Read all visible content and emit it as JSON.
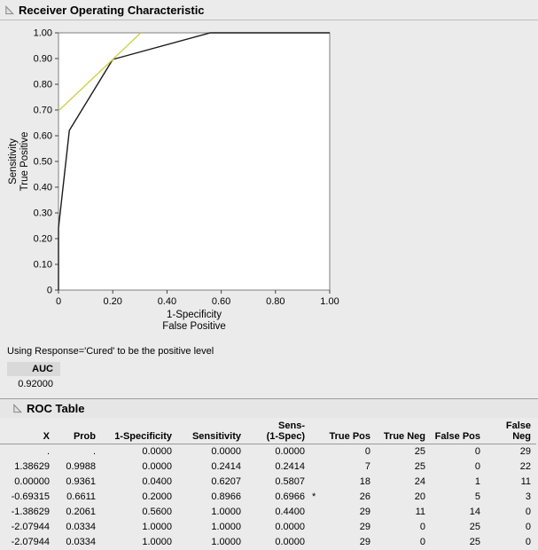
{
  "header": {
    "title": "Receiver Operating Characteristic"
  },
  "note": "Using Response='Cured' to be the positive level",
  "auc": {
    "label": "AUC",
    "value": "0.92000"
  },
  "roc_table_section": {
    "title": "ROC Table"
  },
  "colors": {
    "window_bg": "#ebebeb",
    "plot_bg": "#ffffff",
    "plot_border": "#7f7f7f",
    "curve": "#1a1a1a",
    "reference_line": "#cfd14c",
    "auc_header_bg": "#d9d9d9"
  },
  "chart_data": {
    "type": "line",
    "title": "Receiver Operating Characteristic",
    "xlabel": [
      "1-Specificity",
      "False Positive"
    ],
    "ylabel": [
      "Sensitivity",
      "True Positive"
    ],
    "xlim": [
      0,
      1
    ],
    "ylim": [
      0,
      1
    ],
    "grid": false,
    "x_ticks": [
      0,
      0.2,
      0.4,
      0.6,
      0.8,
      1.0
    ],
    "x_tick_labels": [
      "0",
      "0.20",
      "0.40",
      "0.60",
      "0.80",
      "1.00"
    ],
    "y_ticks": [
      0,
      0.1,
      0.2,
      0.3,
      0.4,
      0.5,
      0.6,
      0.7,
      0.8,
      0.9,
      1.0
    ],
    "y_tick_labels": [
      "0",
      "0.10",
      "0.20",
      "0.30",
      "0.40",
      "0.50",
      "0.60",
      "0.70",
      "0.80",
      "0.90",
      "1.00"
    ],
    "series": [
      {
        "name": "roc-curve",
        "color": "#1a1a1a",
        "points": [
          [
            0,
            0
          ],
          [
            0,
            0.2414
          ],
          [
            0.04,
            0.6207
          ],
          [
            0.2,
            0.8966
          ],
          [
            0.56,
            1.0
          ],
          [
            1.0,
            1.0
          ]
        ]
      },
      {
        "name": "optimal-threshold-reference-line",
        "color": "#cfd14c",
        "points": [
          [
            0,
            0.6966
          ],
          [
            0.3034,
            1.0
          ]
        ]
      }
    ]
  },
  "roc_table": {
    "columns": [
      "X",
      "Prob",
      "1-Specificity",
      "Sensitivity",
      "Sens-\n(1-Spec)",
      "",
      "True Pos",
      "True Neg",
      "False Pos",
      "False Neg"
    ],
    "rows": [
      [
        ".",
        ".",
        "0.0000",
        "0.0000",
        "0.0000",
        "",
        "0",
        "25",
        "0",
        "29"
      ],
      [
        "1.38629",
        "0.9988",
        "0.0000",
        "0.2414",
        "0.2414",
        "",
        "7",
        "25",
        "0",
        "22"
      ],
      [
        "0.00000",
        "0.9361",
        "0.0400",
        "0.6207",
        "0.5807",
        "",
        "18",
        "24",
        "1",
        "11"
      ],
      [
        "-0.69315",
        "0.6611",
        "0.2000",
        "0.8966",
        "0.6966",
        "*",
        "26",
        "20",
        "5",
        "3"
      ],
      [
        "-1.38629",
        "0.2061",
        "0.5600",
        "1.0000",
        "0.4400",
        "",
        "29",
        "11",
        "14",
        "0"
      ],
      [
        "-2.07944",
        "0.0334",
        "1.0000",
        "1.0000",
        "0.0000",
        "",
        "29",
        "0",
        "25",
        "0"
      ],
      [
        "-2.07944",
        "0.0334",
        "1.0000",
        "1.0000",
        "0.0000",
        "",
        "29",
        "0",
        "25",
        "0"
      ]
    ]
  }
}
